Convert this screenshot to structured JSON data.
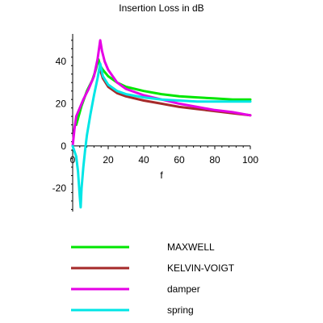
{
  "chart_data": {
    "type": "line",
    "title": "Insertion Loss in dB",
    "xlabel": "f",
    "ylabel": "",
    "xlim": [
      0,
      100
    ],
    "ylim": [
      -31,
      53
    ],
    "x_ticks": [
      0,
      20,
      40,
      60,
      80,
      100
    ],
    "y_ticks": [
      -20,
      0,
      20,
      40
    ],
    "grid": false,
    "legend_position": "bottom",
    "series": [
      {
        "name": "MAXWELL",
        "color": "#00e600",
        "points": [
          [
            2,
            10
          ],
          [
            5,
            19
          ],
          [
            8,
            26
          ],
          [
            11,
            31
          ],
          [
            13,
            36
          ],
          [
            14.5,
            41
          ],
          [
            15.5,
            38
          ],
          [
            17,
            36
          ],
          [
            20,
            33
          ],
          [
            25,
            30
          ],
          [
            30,
            28
          ],
          [
            40,
            26
          ],
          [
            50,
            24.5
          ],
          [
            60,
            23.5
          ],
          [
            70,
            23
          ],
          [
            80,
            22.5
          ],
          [
            90,
            22
          ],
          [
            100,
            22
          ]
        ]
      },
      {
        "name": "KELVIN-VOIGT",
        "color": "#a52a2a",
        "points": [
          [
            15.5,
            36
          ],
          [
            17,
            32
          ],
          [
            20,
            28
          ],
          [
            25,
            25
          ],
          [
            30,
            23.5
          ],
          [
            40,
            21.5
          ],
          [
            50,
            20
          ],
          [
            60,
            18.5
          ],
          [
            70,
            17.5
          ],
          [
            80,
            16.5
          ],
          [
            90,
            15.5
          ],
          [
            100,
            14.5
          ]
        ]
      },
      {
        "name": "damper",
        "color": "#e600e6",
        "points": [
          [
            0,
            0
          ],
          [
            1,
            8
          ],
          [
            2,
            14
          ],
          [
            4,
            18
          ],
          [
            6,
            22
          ],
          [
            9,
            27
          ],
          [
            12,
            33
          ],
          [
            14,
            41
          ],
          [
            15.5,
            50
          ],
          [
            16.5,
            45
          ],
          [
            18,
            40
          ],
          [
            20,
            36
          ],
          [
            25,
            30
          ],
          [
            30,
            27
          ],
          [
            40,
            24
          ],
          [
            50,
            22
          ],
          [
            60,
            20
          ],
          [
            70,
            18.5
          ],
          [
            80,
            17
          ],
          [
            90,
            16
          ],
          [
            100,
            14.5
          ]
        ]
      },
      {
        "name": "spring",
        "color": "#00e6e6",
        "points": [
          [
            0,
            0
          ],
          [
            2,
            -5
          ],
          [
            3,
            -12
          ],
          [
            4,
            -24
          ],
          [
            4.5,
            -29
          ],
          [
            5,
            -20
          ],
          [
            6,
            -10
          ],
          [
            7,
            -2
          ],
          [
            8,
            5
          ],
          [
            10,
            15
          ],
          [
            12,
            24
          ],
          [
            14,
            32
          ],
          [
            15.5,
            39
          ],
          [
            17,
            33
          ],
          [
            20,
            29
          ],
          [
            25,
            26
          ],
          [
            30,
            24.5
          ],
          [
            40,
            23
          ],
          [
            50,
            22
          ],
          [
            60,
            21.5
          ],
          [
            70,
            21
          ],
          [
            80,
            21
          ],
          [
            90,
            21
          ],
          [
            100,
            21
          ]
        ]
      }
    ]
  }
}
